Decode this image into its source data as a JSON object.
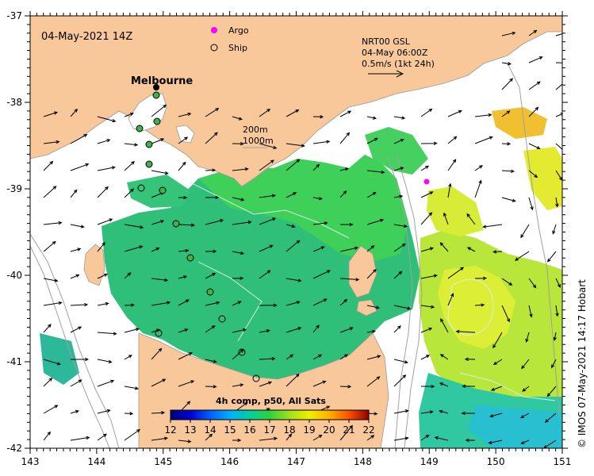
{
  "map": {
    "datetime_label": "04-May-2021 14Z",
    "legend": {
      "argo_label": "Argo",
      "ship_label": "Ship",
      "argo_color": "#ff00ff"
    },
    "place_label": "Melbourne",
    "depth_contours": {
      "line1": "200m",
      "line2": "1000m"
    },
    "current_info": {
      "line1": "NRT00 GSL",
      "line2": "04-May 06:00Z",
      "line3": "0.5m/s (1kt 24h)"
    },
    "colorbar": {
      "title": "4h comp, p50, All Sats",
      "ticks": [
        "12",
        "13",
        "14",
        "15",
        "16",
        "17",
        "18",
        "19",
        "20",
        "21",
        "22"
      ]
    },
    "x_ticks": [
      "143",
      "144",
      "145",
      "146",
      "147",
      "148",
      "149",
      "150",
      "151"
    ],
    "y_ticks": [
      "-37",
      "-38",
      "-39",
      "-40",
      "-41",
      "-42"
    ],
    "credit": "© IMOS 07-May-2021 14:17 Hobart",
    "colors": {
      "land": "#f9c89a",
      "sst_cool": "#2db87a",
      "sst_mid": "#3fcf55",
      "sst_warm": "#c8ec3a",
      "sst_yellow": "#e6e62a"
    }
  }
}
